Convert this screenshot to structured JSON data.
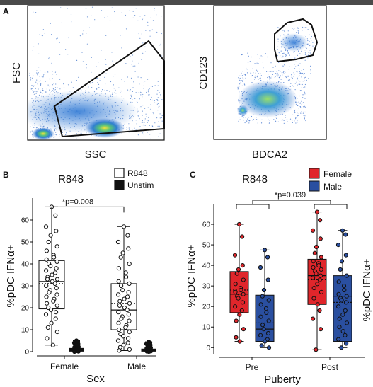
{
  "panel_a": {
    "letter": "A",
    "left_plot": {
      "ylabel": "FSC",
      "xlabel": "SSC"
    },
    "right_plot": {
      "ylabel": "CD123",
      "xlabel": "BDCA2"
    }
  },
  "chart_data": [
    {
      "panel": "B",
      "type": "box",
      "title": "R848",
      "xlabel": "Sex",
      "ylabel": "%pDC IFNα+",
      "ylim": [
        0,
        70
      ],
      "yticks": [
        0,
        10,
        20,
        30,
        40,
        50,
        60
      ],
      "categories": [
        "Female",
        "Male"
      ],
      "legend": {
        "placement": "top-right",
        "entries": [
          {
            "name": "R848",
            "color": "#ffffff"
          },
          {
            "name": "Unstim",
            "color": "#111111"
          }
        ]
      },
      "annotation": "*p=0.008",
      "series": [
        {
          "name": "R848",
          "color": "#ffffff",
          "boxes": [
            {
              "category": "Female",
              "min": 3,
              "q1": 19.5,
              "median": 32,
              "mean": 31,
              "q3": 41.5,
              "max": 66
            },
            {
              "category": "Male",
              "min": 0.5,
              "q1": 10,
              "median": 19,
              "mean": 22,
              "q3": 31,
              "max": 57
            }
          ],
          "points": [
            [
              66,
              62,
              57,
              55,
              53,
              50,
              48,
              46,
              44,
              43,
              42,
              41,
              40,
              39,
              38,
              37,
              36,
              35,
              34,
              33,
              33,
              32,
              31,
              30,
              29,
              28,
              27,
              26,
              25,
              24,
              23,
              22,
              21,
              20,
              19,
              18,
              17,
              15,
              13,
              11,
              9,
              6,
              3
            ],
            [
              57,
              53,
              50,
              47,
              45,
              43,
              40,
              38,
              36,
              34,
              32,
              31,
              30,
              28,
              27,
              26,
              25,
              24,
              23,
              22,
              21,
              20,
              19,
              18,
              17,
              16,
              15,
              14,
              13,
              12,
              11,
              10,
              9,
              8,
              7,
              6,
              5,
              4,
              3,
              2,
              1,
              0.5
            ]
          ]
        },
        {
          "name": "Unstim",
          "color": "#111111",
          "boxes": [
            {
              "category": "Female",
              "min": 0,
              "q1": 0.2,
              "median": 0.8,
              "q3": 1.5,
              "max": 5
            },
            {
              "category": "Male",
              "min": 0,
              "q1": 0.2,
              "median": 0.6,
              "q3": 1.2,
              "max": 4.5
            }
          ],
          "points": [
            [
              5,
              4.5,
              4,
              3.5,
              3,
              2.5,
              2.2,
              2,
              1.8,
              1.6,
              1.5,
              1.4,
              1.3,
              1.2,
              1.1,
              1,
              1,
              0.9,
              0.9,
              0.8,
              0.8,
              0.7,
              0.6,
              0.5,
              0.4,
              0.3,
              0.2,
              0.1,
              0
            ],
            [
              4.5,
              4,
              3.5,
              3,
              2.5,
              2,
              1.8,
              1.5,
              1.3,
              1.2,
              1.1,
              1,
              0.9,
              0.8,
              0.7,
              0.6,
              0.5,
              0.4,
              0.3,
              0.2,
              0.1,
              0
            ]
          ]
        }
      ]
    },
    {
      "panel": "C",
      "type": "box",
      "title": "R848",
      "xlabel": "Puberty",
      "ylabel": "%pDC IFNα+",
      "ylim": [
        -3,
        70
      ],
      "yticks": [
        0,
        10,
        20,
        30,
        40,
        50,
        60
      ],
      "categories": [
        "Pre",
        "Post"
      ],
      "legend": {
        "placement": "top-right",
        "entries": [
          {
            "name": "Female",
            "color": "#e0262b"
          },
          {
            "name": "Male",
            "color": "#2a4fa0"
          }
        ]
      },
      "annotation": "*p=0.039",
      "series": [
        {
          "name": "Female",
          "color": "#e0262b",
          "boxes": [
            {
              "category": "Pre",
              "min": 3,
              "q1": 17,
              "median": 26,
              "mean": 28,
              "q3": 37,
              "max": 60
            },
            {
              "category": "Post",
              "min": -1,
              "q1": 21,
              "median": 35,
              "mean": 33,
              "q3": 43,
              "max": 66
            }
          ],
          "points": [
            [
              60,
              54,
              45,
              40,
              38,
              36,
              33,
              31,
              29,
              28,
              27,
              26,
              25,
              24,
              22,
              20,
              18,
              16,
              13,
              9,
              5,
              3
            ],
            [
              66,
              62,
              57,
              53,
              49,
              46,
              44,
              42,
              41,
              40,
              39,
              38,
              37,
              36,
              35,
              34,
              33,
              31,
              29,
              27,
              24,
              21,
              18,
              14,
              9,
              -1
            ]
          ]
        },
        {
          "name": "Male",
          "color": "#2a4fa0",
          "boxes": [
            {
              "category": "Pre",
              "min": 0,
              "q1": 3,
              "median": 9,
              "mean": 12,
              "q3": 25.5,
              "max": 47.5
            },
            {
              "category": "Post",
              "min": 0,
              "q1": 3,
              "median": 25,
              "mean": 22,
              "q3": 35,
              "max": 57
            }
          ],
          "points": [
            [
              47.5,
              44,
              39,
              33,
              28,
              25,
              23,
              21,
              19,
              17,
              15,
              13,
              11,
              9,
              7,
              6,
              4,
              3,
              1,
              0
            ],
            [
              57,
              55,
              50,
              45,
              42,
              38,
              35,
              32,
              30,
              28,
              26,
              25,
              24,
              23,
              22,
              20,
              18,
              16,
              14,
              12,
              10,
              8,
              6,
              4,
              2,
              0
            ]
          ]
        }
      ]
    }
  ]
}
